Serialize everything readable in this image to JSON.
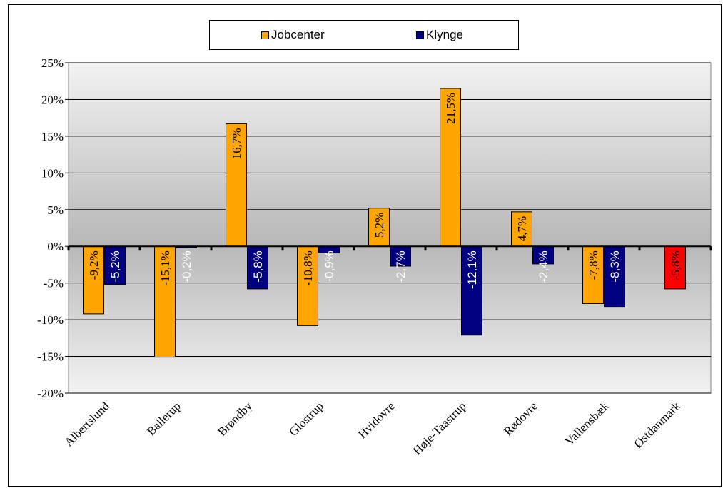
{
  "chart_data": {
    "type": "bar",
    "categories": [
      "Albertslund",
      "Ballerup",
      "Brøndby",
      "Glostrup",
      "Hvidovre",
      "Høje-Taastrup",
      "Rødovre",
      "Vallensbæk",
      "Østdanmark"
    ],
    "series": [
      {
        "name": "Jobcenter",
        "color": "#FFA500",
        "values": [
          -9.2,
          -15.1,
          16.7,
          -10.8,
          5.2,
          21.5,
          4.7,
          -7.8,
          -5.8
        ],
        "labels": [
          "-9,2%",
          "-15,1%",
          "16,7%",
          "-10,8%",
          "5,2%",
          "21,5%",
          "4,7%",
          "-7,8%",
          "-5,8%"
        ],
        "point_colors": [
          null,
          null,
          null,
          null,
          null,
          null,
          null,
          null,
          "#FF0000"
        ]
      },
      {
        "name": "Klynge",
        "color": "#000080",
        "values": [
          -5.2,
          -0.2,
          -5.8,
          -0.9,
          -2.7,
          -12.1,
          -2.4,
          -8.3,
          null
        ],
        "labels": [
          "-5,2%",
          "-0,2%",
          "-5,8%",
          "-0,9%",
          "-2,7%",
          "-12,1%",
          "-2,4%",
          "-8,3%",
          null
        ]
      }
    ],
    "y_ticks": [
      "25%",
      "20%",
      "15%",
      "10%",
      "5%",
      "0%",
      "-5%",
      "-10%",
      "-15%",
      "-20%"
    ],
    "y_tick_values": [
      25,
      20,
      15,
      10,
      5,
      0,
      -5,
      -10,
      -15,
      -20
    ],
    "ylim": [
      -20,
      25
    ],
    "grid": true,
    "legend_position": "top-center",
    "title": "",
    "xlabel": "",
    "ylabel": ""
  }
}
